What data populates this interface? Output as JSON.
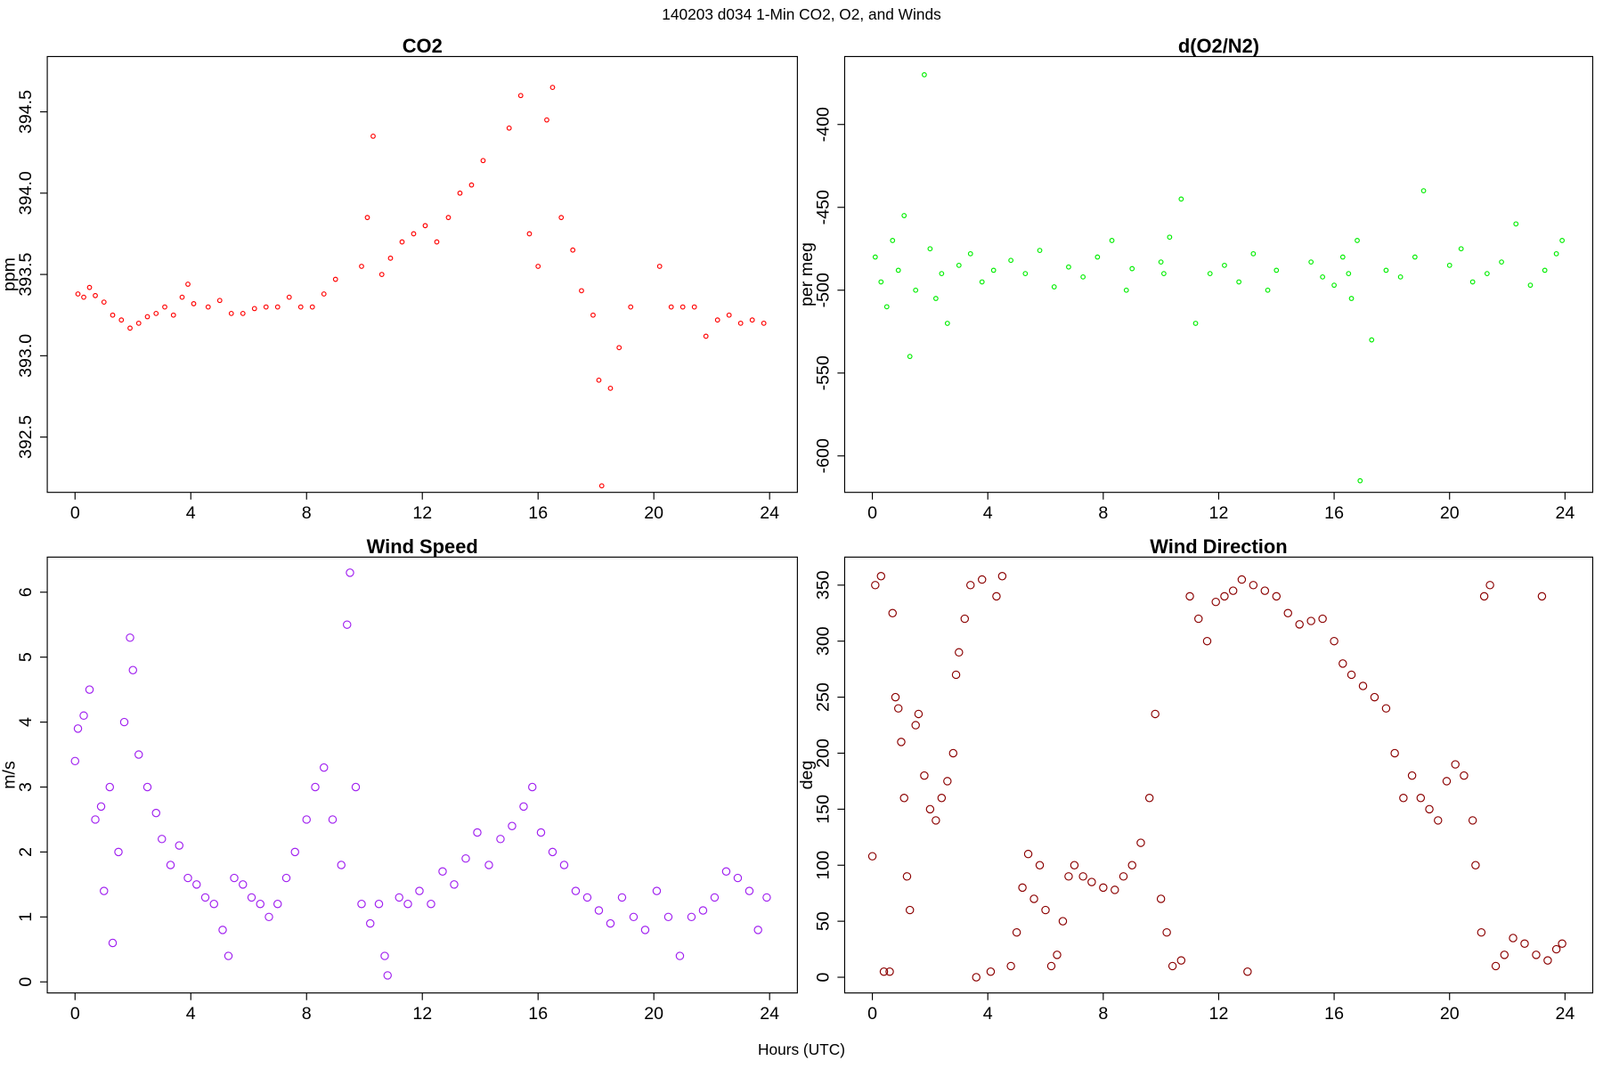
{
  "title": "140203   d034   1-Min CO2, O2, and Winds",
  "xlabel": "Hours (UTC)",
  "chart_data": [
    {
      "type": "scatter",
      "title": "CO2",
      "ylabel": "ppm",
      "color": "#ff0000",
      "x": [
        0.1,
        0.3,
        0.5,
        0.7,
        1.0,
        1.3,
        1.6,
        1.9,
        2.2,
        2.5,
        2.8,
        3.1,
        3.4,
        3.7,
        3.9,
        4.1,
        4.6,
        5.0,
        5.4,
        5.8,
        6.2,
        6.6,
        7.0,
        7.4,
        7.8,
        8.2,
        8.6,
        9.0,
        9.9,
        10.1,
        10.3,
        10.6,
        10.9,
        11.3,
        11.7,
        12.1,
        12.5,
        12.9,
        13.3,
        13.7,
        14.1,
        15.0,
        15.4,
        15.7,
        16.0,
        16.3,
        16.5,
        16.8,
        17.2,
        17.5,
        17.9,
        18.1,
        18.2,
        18.5,
        18.8,
        19.2,
        20.2,
        20.6,
        21.0,
        21.4,
        21.8,
        22.2,
        22.6,
        23.0,
        23.4,
        23.8
      ],
      "values": [
        393.38,
        393.36,
        393.42,
        393.37,
        393.33,
        393.25,
        393.22,
        393.17,
        393.2,
        393.24,
        393.26,
        393.3,
        393.25,
        393.36,
        393.44,
        393.32,
        393.3,
        393.34,
        393.26,
        393.26,
        393.29,
        393.3,
        393.3,
        393.36,
        393.3,
        393.3,
        393.38,
        393.47,
        393.55,
        393.85,
        394.35,
        393.5,
        393.6,
        393.7,
        393.75,
        393.8,
        393.7,
        393.85,
        394.0,
        394.05,
        394.2,
        394.4,
        394.6,
        393.75,
        393.55,
        394.45,
        394.65,
        393.85,
        393.65,
        393.4,
        393.25,
        392.85,
        392.2,
        392.8,
        393.05,
        393.3,
        393.55,
        393.3,
        393.3,
        393.3,
        393.12,
        393.22,
        393.25,
        393.2,
        393.22,
        393.2
      ],
      "xlim": [
        -0.96,
        24.96
      ],
      "ylim": [
        392.16,
        394.84
      ],
      "xticks": [
        0,
        4,
        8,
        12,
        16,
        20,
        24
      ],
      "yticks": [
        {
          "value": 392.5,
          "label": "392.5"
        },
        {
          "value": 393,
          "label": "393.0"
        },
        {
          "value": 393.5,
          "label": "393.5"
        },
        {
          "value": 394,
          "label": "394.0"
        },
        {
          "value": 394.5,
          "label": "394.5"
        }
      ]
    },
    {
      "type": "scatter",
      "title": "d(O2/N2)",
      "ylabel": "per meg",
      "color": "#00ee00",
      "x": [
        0.1,
        0.3,
        0.5,
        0.7,
        0.9,
        1.1,
        1.3,
        1.5,
        1.8,
        2.0,
        2.2,
        2.4,
        2.6,
        3.0,
        3.4,
        3.8,
        4.2,
        4.8,
        5.3,
        5.8,
        6.3,
        6.8,
        7.3,
        7.8,
        8.3,
        8.8,
        9.0,
        10.0,
        10.1,
        10.3,
        10.7,
        11.2,
        11.7,
        12.2,
        12.7,
        13.2,
        13.7,
        14.0,
        15.2,
        15.6,
        16.0,
        16.3,
        16.5,
        16.6,
        16.8,
        16.9,
        17.3,
        17.8,
        18.3,
        18.8,
        19.1,
        20.0,
        20.4,
        20.8,
        21.3,
        21.8,
        22.3,
        22.8,
        23.3,
        23.7,
        23.9
      ],
      "values": [
        -480,
        -495,
        -510,
        -470,
        -488,
        -455,
        -540,
        -500,
        -370,
        -475,
        -505,
        -490,
        -520,
        -485,
        -478,
        -495,
        -488,
        -482,
        -490,
        -476,
        -498,
        -486,
        -492,
        -480,
        -470,
        -500,
        -487,
        -483,
        -490,
        -468,
        -445,
        -520,
        -490,
        -485,
        -495,
        -478,
        -500,
        -488,
        -483,
        -492,
        -497,
        -480,
        -490,
        -505,
        -470,
        -615,
        -530,
        -488,
        -492,
        -480,
        -440,
        -485,
        -475,
        -495,
        -490,
        -483,
        -460,
        -497,
        -488,
        -478,
        -470
      ],
      "xlim": [
        -0.96,
        24.96
      ],
      "ylim": [
        -622,
        -359
      ],
      "xticks": [
        0,
        4,
        8,
        12,
        16,
        20,
        24
      ],
      "yticks": [
        -600,
        -550,
        -500,
        -450,
        -400
      ]
    },
    {
      "type": "scatter",
      "title": "Wind Speed",
      "ylabel": "m/s",
      "color": "#a020f0",
      "x": [
        0,
        0.1,
        0.3,
        0.5,
        0.7,
        0.9,
        1.0,
        1.2,
        1.3,
        1.5,
        1.7,
        1.9,
        2.0,
        2.2,
        2.5,
        2.8,
        3.0,
        3.3,
        3.6,
        3.9,
        4.2,
        4.5,
        4.8,
        5.1,
        5.3,
        5.5,
        5.8,
        6.1,
        6.4,
        6.7,
        7.0,
        7.3,
        7.6,
        8.0,
        8.3,
        8.6,
        8.9,
        9.2,
        9.4,
        9.5,
        9.7,
        9.9,
        10.2,
        10.5,
        10.7,
        10.8,
        11.2,
        11.5,
        11.9,
        12.3,
        12.7,
        13.1,
        13.5,
        13.9,
        14.3,
        14.7,
        15.1,
        15.5,
        15.8,
        16.1,
        16.5,
        16.9,
        17.3,
        17.7,
        18.1,
        18.5,
        18.9,
        19.3,
        19.7,
        20.1,
        20.5,
        20.9,
        21.3,
        21.7,
        22.1,
        22.5,
        22.9,
        23.3,
        23.6,
        23.9
      ],
      "values": [
        3.4,
        3.9,
        4.1,
        4.5,
        2.5,
        2.7,
        1.4,
        3.0,
        0.6,
        2.0,
        4.0,
        5.3,
        4.8,
        3.5,
        3.0,
        2.6,
        2.2,
        1.8,
        2.1,
        1.6,
        1.5,
        1.3,
        1.2,
        0.8,
        0.4,
        1.6,
        1.5,
        1.3,
        1.2,
        1.0,
        1.2,
        1.6,
        2.0,
        2.5,
        3.0,
        3.3,
        2.5,
        1.8,
        5.5,
        6.3,
        3.0,
        1.2,
        0.9,
        1.2,
        0.4,
        0.1,
        1.3,
        1.2,
        1.4,
        1.2,
        1.7,
        1.5,
        1.9,
        2.3,
        1.8,
        2.2,
        2.4,
        2.7,
        3.0,
        2.3,
        2.0,
        1.8,
        1.4,
        1.3,
        1.1,
        0.9,
        1.3,
        1.0,
        0.8,
        1.4,
        1.0,
        0.4,
        1.0,
        1.1,
        1.3,
        1.7,
        1.6,
        1.4,
        0.8,
        1.3
      ],
      "xlim": [
        -0.96,
        24.96
      ],
      "ylim": [
        -0.17,
        6.54
      ],
      "xticks": [
        0,
        4,
        8,
        12,
        16,
        20,
        24
      ],
      "yticks": [
        0,
        1,
        2,
        3,
        4,
        5,
        6
      ]
    },
    {
      "type": "scatter",
      "title": "Wind Direction",
      "ylabel": "deg",
      "color": "#8b0000",
      "x": [
        0,
        0.1,
        0.3,
        0.4,
        0.6,
        0.7,
        0.8,
        0.9,
        1.0,
        1.1,
        1.2,
        1.3,
        1.5,
        1.6,
        1.8,
        2.0,
        2.2,
        2.4,
        2.6,
        2.8,
        2.9,
        3.0,
        3.2,
        3.4,
        3.6,
        3.8,
        4.1,
        4.3,
        4.5,
        4.8,
        5.0,
        5.2,
        5.4,
        5.6,
        5.8,
        6.0,
        6.2,
        6.4,
        6.6,
        6.8,
        7.0,
        7.3,
        7.6,
        8.0,
        8.4,
        8.7,
        9.0,
        9.3,
        9.6,
        9.8,
        10.0,
        10.2,
        10.4,
        10.7,
        11.0,
        11.3,
        11.6,
        11.9,
        12.2,
        12.5,
        12.8,
        13.0,
        13.2,
        13.6,
        14.0,
        14.4,
        14.8,
        15.2,
        15.6,
        16.0,
        16.3,
        16.6,
        17.0,
        17.4,
        17.8,
        18.1,
        18.4,
        18.7,
        19.0,
        19.3,
        19.6,
        19.9,
        20.2,
        20.5,
        20.8,
        20.9,
        21.1,
        21.2,
        21.4,
        21.6,
        21.9,
        22.2,
        22.6,
        23.0,
        23.2,
        23.4,
        23.7,
        23.9
      ],
      "values": [
        108,
        350,
        358,
        5,
        5,
        325,
        250,
        240,
        210,
        160,
        90,
        60,
        225,
        235,
        180,
        150,
        140,
        160,
        175,
        200,
        270,
        290,
        320,
        350,
        0,
        355,
        5,
        340,
        358,
        10,
        40,
        80,
        110,
        70,
        100,
        60,
        10,
        20,
        50,
        90,
        100,
        90,
        85,
        80,
        78,
        90,
        100,
        120,
        160,
        235,
        70,
        40,
        10,
        15,
        340,
        320,
        300,
        335,
        340,
        345,
        355,
        5,
        350,
        345,
        340,
        325,
        315,
        318,
        320,
        300,
        280,
        270,
        260,
        250,
        240,
        200,
        160,
        180,
        160,
        150,
        140,
        175,
        190,
        180,
        140,
        100,
        40,
        340,
        350,
        10,
        20,
        35,
        30,
        20,
        340,
        15,
        25,
        30
      ],
      "xlim": [
        -0.96,
        24.96
      ],
      "ylim": [
        -14,
        375
      ],
      "xticks": [
        0,
        4,
        8,
        12,
        16,
        20,
        24
      ],
      "yticks": [
        0,
        50,
        100,
        150,
        200,
        250,
        300,
        350
      ]
    }
  ]
}
